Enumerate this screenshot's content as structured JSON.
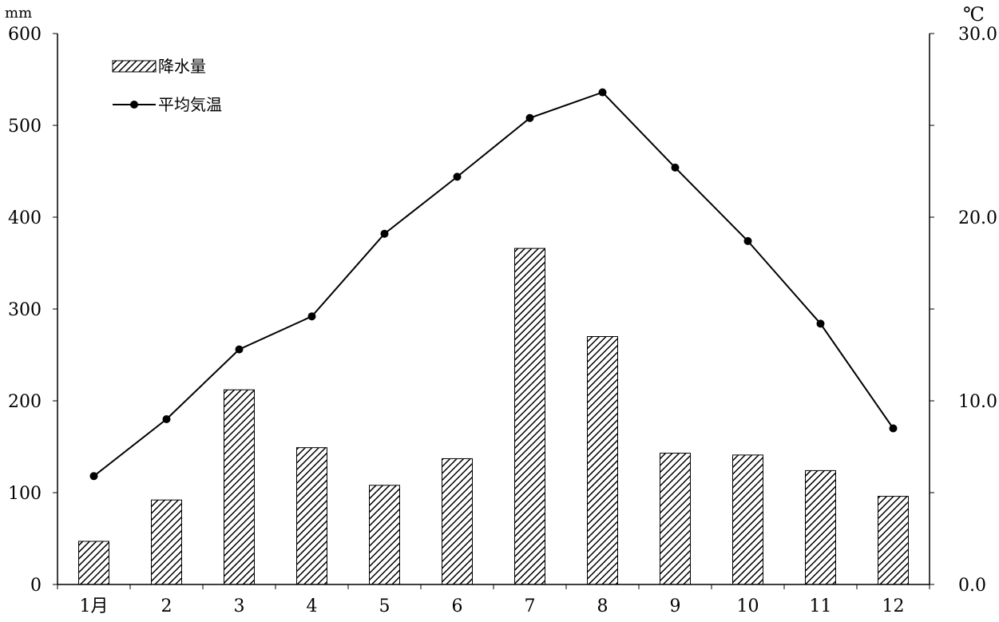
{
  "chart_data": {
    "type": "bar+line",
    "categories": [
      "1月",
      "2",
      "3",
      "4",
      "5",
      "6",
      "7",
      "8",
      "9",
      "10",
      "11",
      "12"
    ],
    "series": [
      {
        "name": "降水量",
        "type": "bar",
        "axis": "left",
        "values": [
          47,
          92,
          212,
          149,
          108,
          137,
          366,
          270,
          143,
          141,
          124,
          96
        ]
      },
      {
        "name": "平均気温",
        "type": "line",
        "axis": "right",
        "values": [
          5.9,
          9.0,
          12.8,
          14.6,
          19.1,
          22.2,
          25.4,
          26.8,
          22.7,
          18.7,
          14.2,
          8.5
        ]
      }
    ],
    "left_axis": {
      "unit": "mm",
      "range": [
        0,
        600
      ],
      "ticks": [
        "0",
        "100",
        "200",
        "300",
        "400",
        "500",
        "600"
      ]
    },
    "right_axis": {
      "unit": "℃",
      "range": [
        0,
        30
      ],
      "ticks": [
        "0.0",
        "10.0",
        "20.0",
        "30.0"
      ]
    },
    "legend_position": "top-left",
    "grid": false,
    "colors": {
      "bar_stroke": "#000000",
      "bar_hatch": "#000000",
      "line": "#000000",
      "marker": "#000000"
    }
  }
}
